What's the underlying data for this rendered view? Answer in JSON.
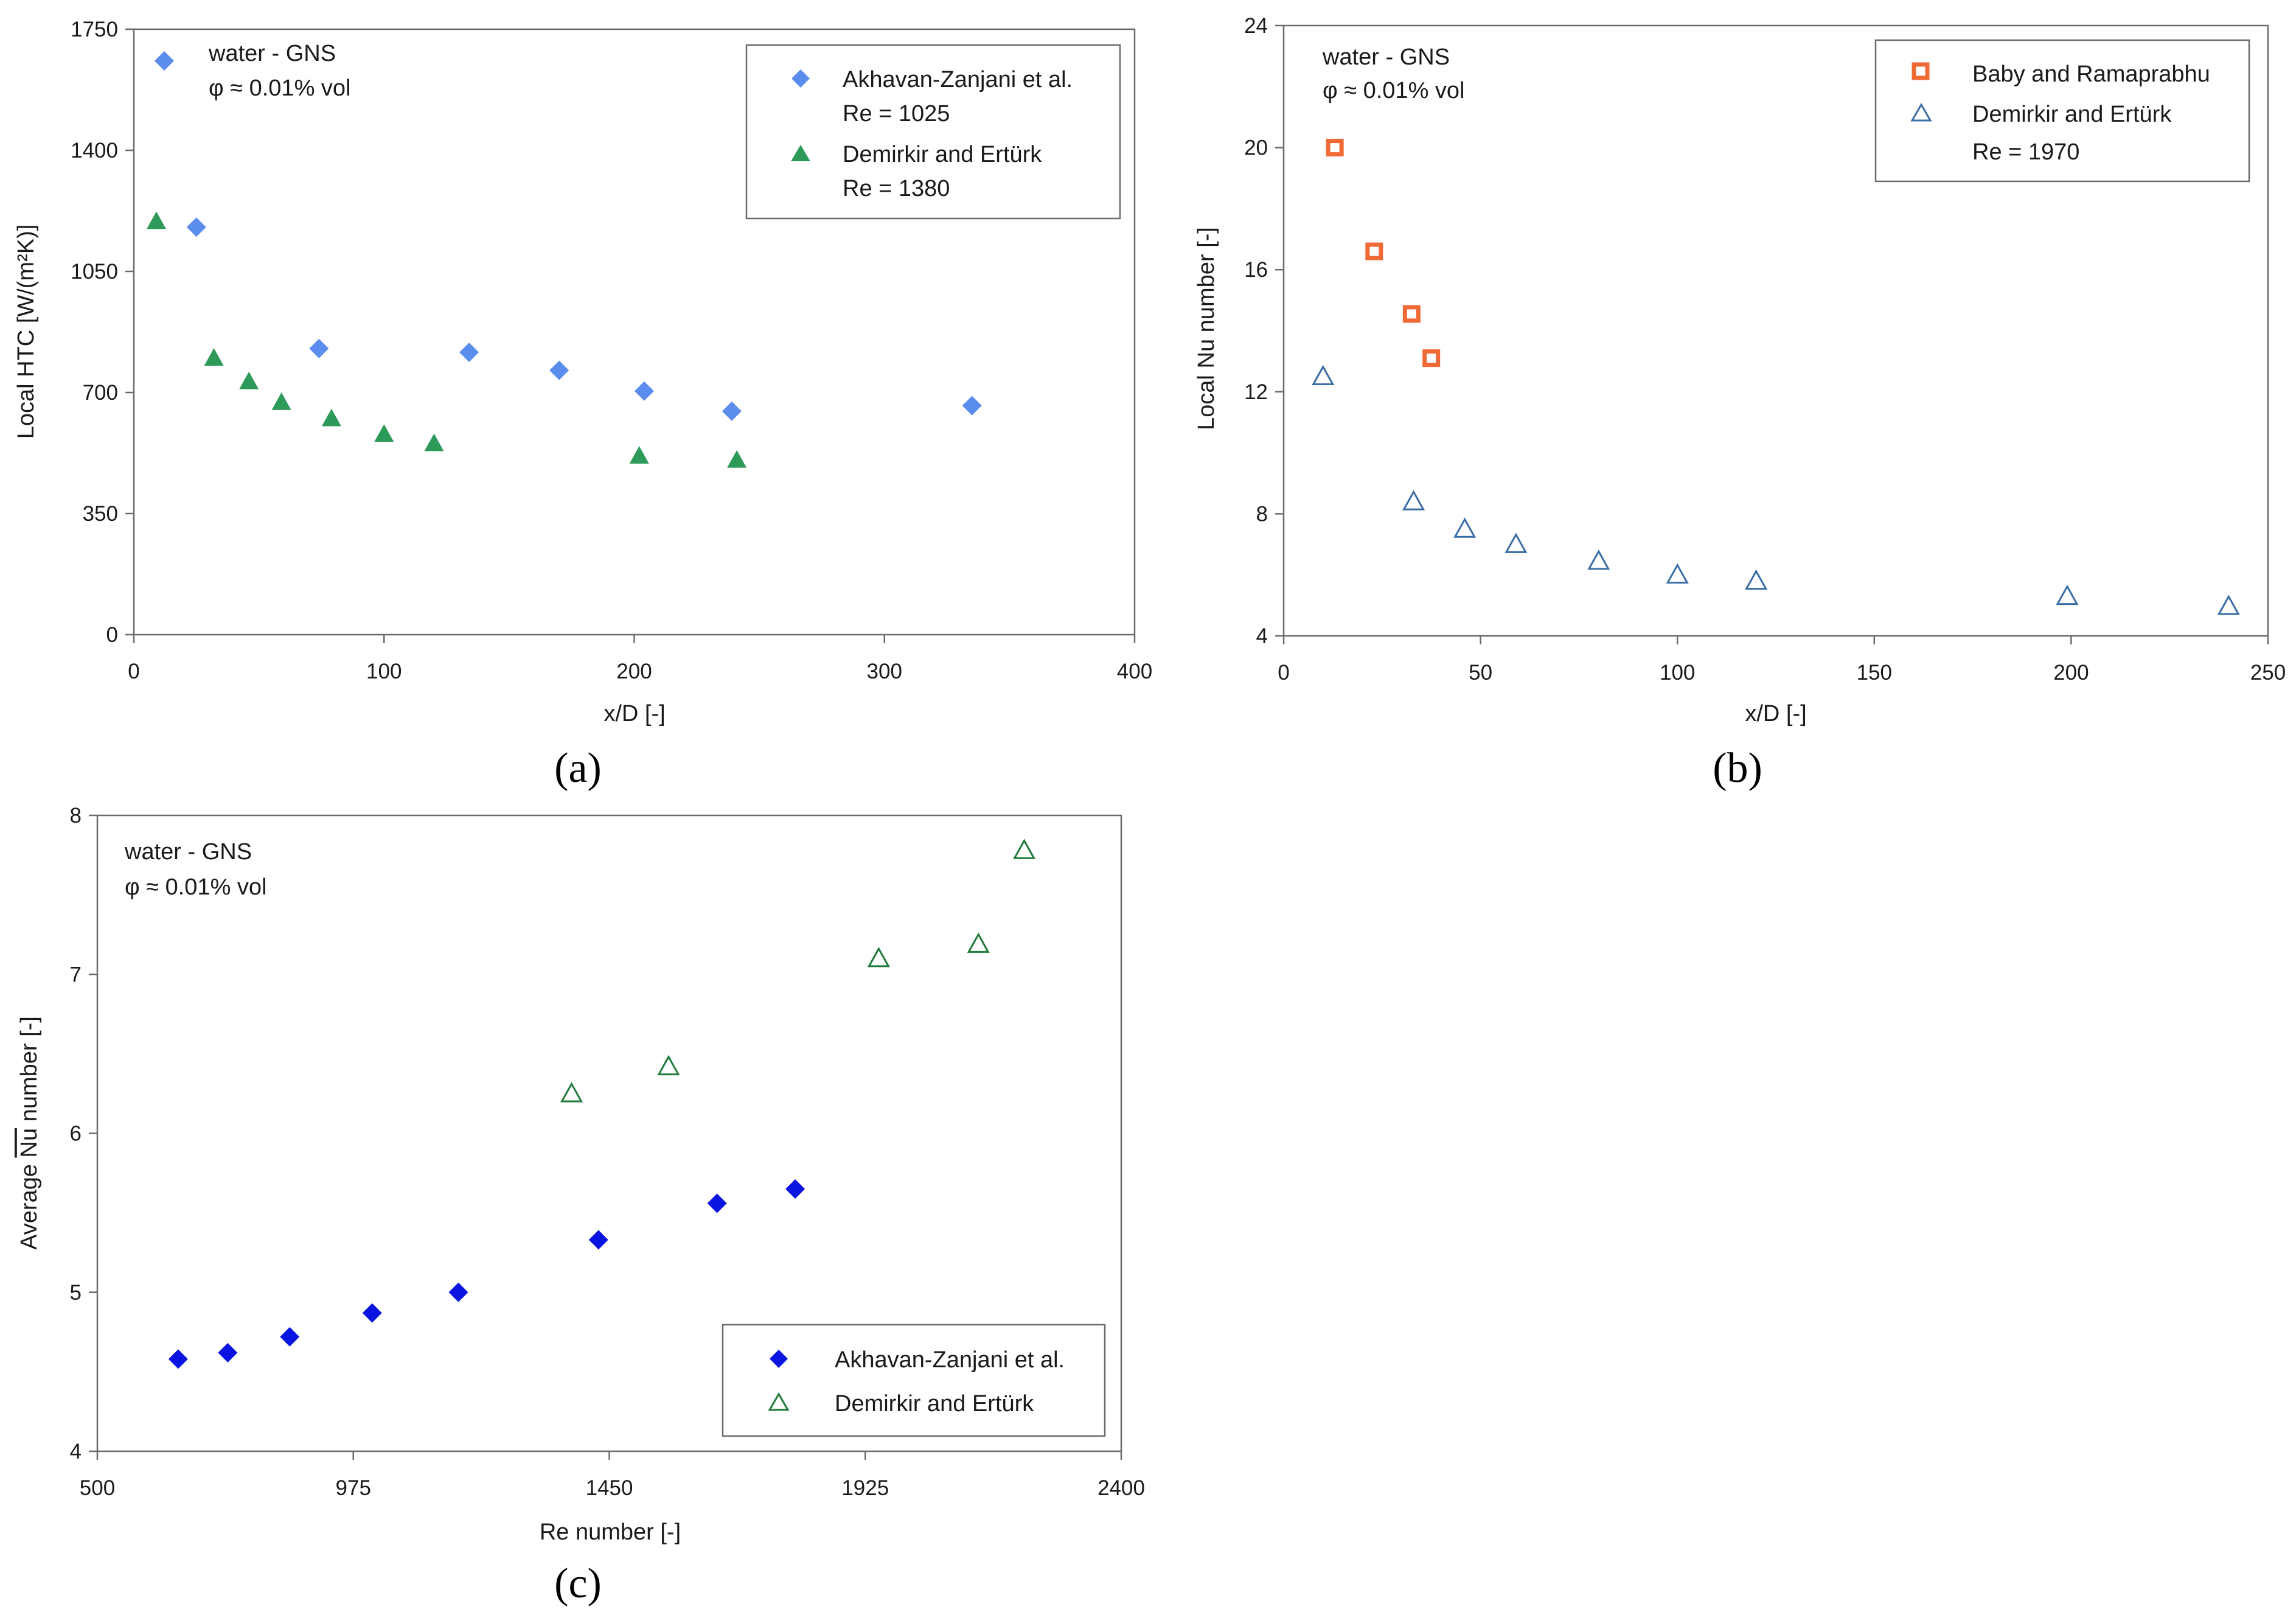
{
  "figure": {
    "panel_labels": [
      "(a)",
      "(b)",
      "(c)"
    ]
  },
  "chart_data": [
    {
      "type": "scatter",
      "panel": "(a)",
      "xlabel": "x/D [-]",
      "ylabel": "Local HTC [W/(m²K)]",
      "xlim": [
        0,
        400
      ],
      "ylim": [
        0,
        1750
      ],
      "xticks": [
        0,
        100,
        200,
        300,
        400
      ],
      "yticks": [
        0,
        350,
        700,
        1050,
        1400,
        1750
      ],
      "annotation": [
        "water - GNS",
        "φ ≈ 0.01% vol"
      ],
      "legend_position": "top-right",
      "series": [
        {
          "name": "Akhavan-Zanjani et al.",
          "sublabel": "Re = 1025",
          "marker": "diamond",
          "color": "#5b8def",
          "points": [
            [
              25,
              1178
            ],
            [
              74,
              827
            ],
            [
              134,
              816
            ],
            [
              170,
              764
            ],
            [
              204,
              704
            ],
            [
              239,
              646
            ],
            [
              335,
              662
            ]
          ]
        },
        {
          "name": "Demirkir and Ertürk",
          "sublabel": "Re = 1380",
          "marker": "triangle",
          "color": "#2e9a5a",
          "points": [
            [
              9,
              1195
            ],
            [
              32,
              800
            ],
            [
              46,
              732
            ],
            [
              59,
              672
            ],
            [
              79,
              625
            ],
            [
              100,
              580
            ],
            [
              120,
              553
            ],
            [
              202,
              517
            ],
            [
              241,
              505
            ]
          ]
        }
      ]
    },
    {
      "type": "scatter",
      "panel": "(b)",
      "xlabel": "x/D [-]",
      "ylabel": "Local Nu number [-]",
      "xlim": [
        0,
        250
      ],
      "ylim": [
        4,
        24
      ],
      "xticks": [
        0,
        50,
        100,
        150,
        200,
        250
      ],
      "yticks": [
        4,
        8,
        12,
        16,
        20,
        24
      ],
      "annotation": [
        "water - GNS",
        "φ ≈ 0.01% vol"
      ],
      "legend_position": "top-right",
      "legend_extra": "Re = 1970",
      "series": [
        {
          "name": "Baby and Ramaprabhu",
          "marker": "square-open",
          "color": "#f06a35",
          "points": [
            [
              13,
              20.0
            ],
            [
              23,
              16.6
            ],
            [
              32.5,
              14.55
            ],
            [
              37.5,
              13.1
            ]
          ]
        },
        {
          "name": "Demirkir and Ertürk",
          "marker": "triangle-open",
          "color": "#3a6ea5",
          "points": [
            [
              10,
              12.5
            ],
            [
              33,
              8.4
            ],
            [
              46,
              7.5
            ],
            [
              59,
              7.0
            ],
            [
              80,
              6.45
            ],
            [
              100,
              6.0
            ],
            [
              120,
              5.8
            ],
            [
              199,
              5.3
            ],
            [
              240,
              4.97
            ]
          ]
        }
      ]
    },
    {
      "type": "scatter",
      "panel": "(c)",
      "xlabel": "Re number [-]",
      "ylabel": "Average Nu number [-]",
      "xlim": [
        500,
        2400
      ],
      "ylim": [
        4,
        8
      ],
      "xticks": [
        500,
        975,
        1450,
        1925,
        2400
      ],
      "yticks": [
        4,
        5,
        6,
        7,
        8
      ],
      "annotation": [
        "water - GNS",
        "φ ≈ 0.01% vol"
      ],
      "legend_position": "bottom-right",
      "series": [
        {
          "name": "Akhavan-Zanjani et al.",
          "marker": "diamond",
          "color": "#0a14e0",
          "points": [
            [
              650,
              4.58
            ],
            [
              742,
              4.62
            ],
            [
              857,
              4.72
            ],
            [
              1010,
              4.87
            ],
            [
              1170,
              5.0
            ],
            [
              1430,
              5.33
            ],
            [
              1650,
              5.56
            ],
            [
              1795,
              5.65
            ]
          ]
        },
        {
          "name": "Demirkir and Ertürk",
          "marker": "triangle-open",
          "color": "#1f7a3a",
          "points": [
            [
              1380,
              6.25
            ],
            [
              1560,
              6.42
            ],
            [
              1950,
              7.1
            ],
            [
              2135,
              7.19
            ],
            [
              2220,
              7.78
            ]
          ]
        }
      ]
    }
  ]
}
